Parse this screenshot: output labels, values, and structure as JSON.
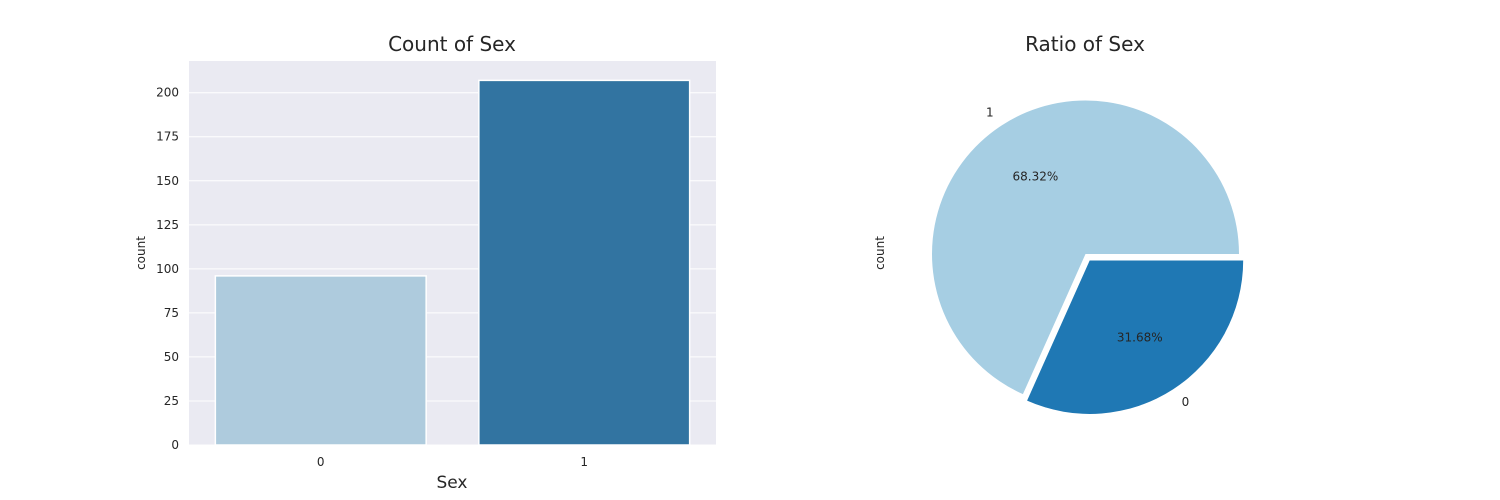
{
  "chart_data": [
    {
      "type": "bar",
      "title": "Count of Sex",
      "xlabel": "Sex",
      "ylabel": "count",
      "categories": [
        "0",
        "1"
      ],
      "values": [
        96,
        207
      ],
      "ylim": [
        0,
        218
      ],
      "yticks": [
        0,
        25,
        50,
        75,
        100,
        125,
        150,
        175,
        200
      ],
      "colors": [
        "#aecbdd",
        "#3274a1"
      ],
      "background": "#eaeaf2",
      "grid": true
    },
    {
      "type": "pie",
      "title": "Ratio of Sex",
      "ylabel": "count",
      "labels": [
        "1",
        "0"
      ],
      "values": [
        207,
        96
      ],
      "percent_labels": [
        "68.32%",
        "31.68%"
      ],
      "colors": [
        "#a6cee3",
        "#1f78b4"
      ],
      "explode": [
        0,
        0.05
      ]
    }
  ]
}
